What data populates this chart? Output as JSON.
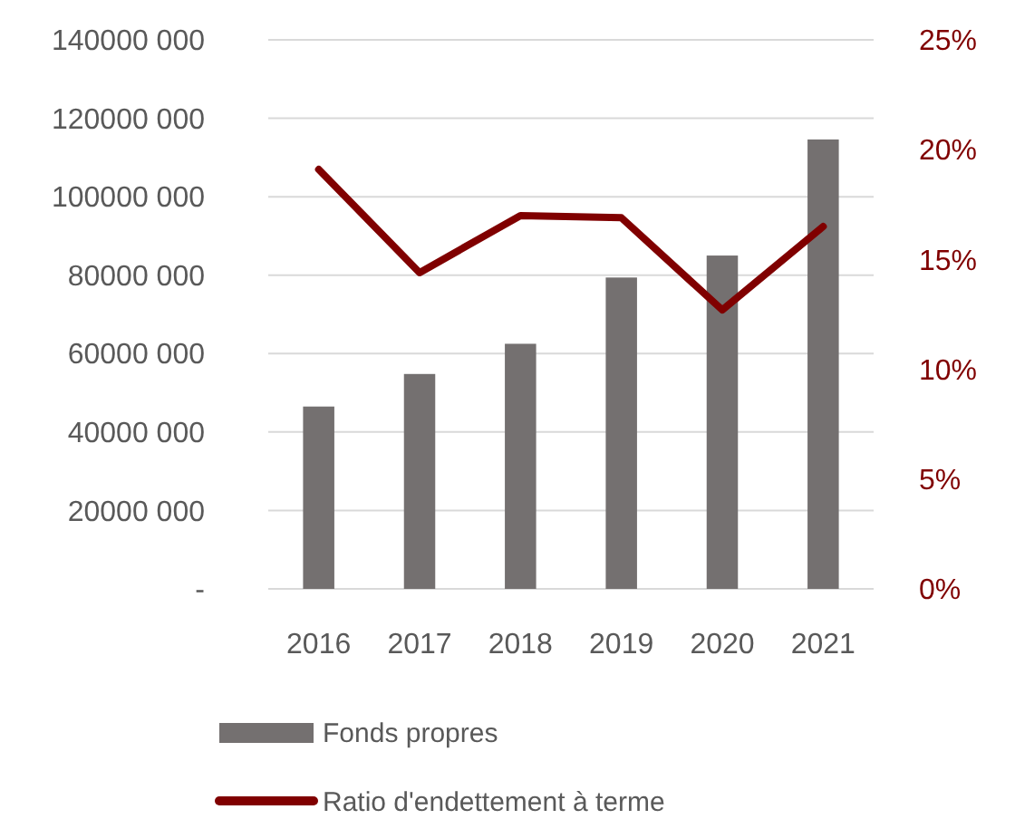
{
  "chart_data": {
    "type": "bar",
    "categories": [
      "2016",
      "2017",
      "2018",
      "2019",
      "2020",
      "2021"
    ],
    "series": [
      {
        "name": "Fonds propres",
        "color": "#747070",
        "values": [
          46500000,
          54800000,
          62500000,
          79400000,
          85000000,
          114600000
        ]
      },
      {
        "name": "Ratio d'endettement à terme",
        "type": "line",
        "axis": "y2",
        "color": "#800000",
        "values": [
          19.1,
          14.4,
          17.0,
          16.9,
          12.7,
          16.5
        ]
      }
    ],
    "ylim": [
      0,
      140000000
    ],
    "yticks": [
      {
        "value": 0,
        "label": "-"
      },
      {
        "value": 20000000,
        "label": "20000 000"
      },
      {
        "value": 40000000,
        "label": "40000 000"
      },
      {
        "value": 60000000,
        "label": "60000 000"
      },
      {
        "value": 80000000,
        "label": "80000 000"
      },
      {
        "value": 100000000,
        "label": "100000 000"
      },
      {
        "value": 120000000,
        "label": "120000 000"
      },
      {
        "value": 140000000,
        "label": "140000 000"
      }
    ],
    "y2lim": [
      0,
      25
    ],
    "y2ticks": [
      {
        "value": 0,
        "label": "0%"
      },
      {
        "value": 5,
        "label": "5%"
      },
      {
        "value": 10,
        "label": "10%"
      },
      {
        "value": 15,
        "label": "15%"
      },
      {
        "value": 20,
        "label": "20%"
      },
      {
        "value": 25,
        "label": "25%"
      }
    ],
    "grid": "y",
    "legend": "bottom",
    "marker": "none"
  }
}
